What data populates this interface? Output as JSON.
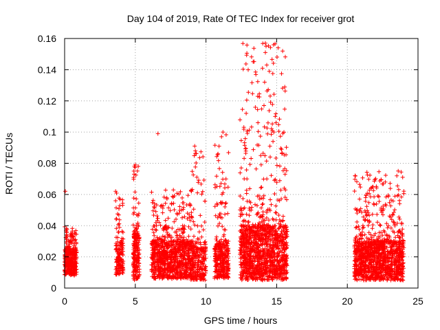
{
  "chart_data": {
    "type": "scatter",
    "title": "Day 104 of 2019, Rate Of TEC Index for receiver grot",
    "xlabel": "GPS time / hours",
    "ylabel": "ROTI / TECUs",
    "xlim": [
      0,
      25
    ],
    "ylim": [
      0,
      0.16
    ],
    "xticks": [
      0,
      5,
      10,
      15,
      20,
      25
    ],
    "yticks": [
      0,
      0.02,
      0.04,
      0.06,
      0.08,
      0.1,
      0.12,
      0.14,
      0.16
    ],
    "xtick_labels": [
      "0",
      "5",
      "10",
      "15",
      "20",
      "25"
    ],
    "ytick_labels": [
      "0",
      "0.02",
      "0.04",
      "0.06",
      "0.08",
      "0.1",
      "0.12",
      "0.14",
      "0.16"
    ],
    "grid": true,
    "marker": "+",
    "color": "#ff0000",
    "clusters": [
      {
        "x_range": [
          0.0,
          0.85
        ],
        "y_base": [
          0.008,
          0.025
        ],
        "n": 340,
        "y_max": 0.04
      },
      {
        "x_range": [
          3.6,
          4.15
        ],
        "y_base": [
          0.008,
          0.03
        ],
        "n": 150,
        "y_max": 0.066
      },
      {
        "x_range": [
          4.85,
          5.3
        ],
        "y_base": [
          0.005,
          0.035
        ],
        "n": 200,
        "y_max": 0.079
      },
      {
        "x_range": [
          6.15,
          9.0
        ],
        "y_base": [
          0.006,
          0.03
        ],
        "n": 900,
        "y_max": 0.063
      },
      {
        "x_range": [
          8.9,
          10.0
        ],
        "y_base": [
          0.005,
          0.028
        ],
        "n": 260,
        "y_max": 0.091
      },
      {
        "x_range": [
          10.6,
          11.6
        ],
        "y_base": [
          0.006,
          0.03
        ],
        "n": 320,
        "y_max": 0.099
      },
      {
        "x_range": [
          12.4,
          15.75
        ],
        "y_base": [
          0.005,
          0.04
        ],
        "n": 1300,
        "y_max": 0.157
      },
      {
        "x_range": [
          20.5,
          24.0
        ],
        "y_base": [
          0.005,
          0.03
        ],
        "n": 1200,
        "y_max": 0.075
      }
    ],
    "highlights": [
      {
        "x": 0.05,
        "y": 0.062
      },
      {
        "x": 6.6,
        "y": 0.099
      },
      {
        "x": 11.2,
        "y": 0.1
      },
      {
        "x": 14.2,
        "y": 0.157
      },
      {
        "x": 14.25,
        "y": 0.155
      },
      {
        "x": 14.2,
        "y": 0.151
      },
      {
        "x": 14.3,
        "y": 0.143
      },
      {
        "x": 14.15,
        "y": 0.132
      },
      {
        "x": 14.9,
        "y": 0.11
      },
      {
        "x": 14.95,
        "y": 0.106
      },
      {
        "x": 9.2,
        "y": 0.091
      },
      {
        "x": 9.25,
        "y": 0.088
      },
      {
        "x": 11.1,
        "y": 0.097
      },
      {
        "x": 14.8,
        "y": 0.1
      },
      {
        "x": 23.6,
        "y": 0.075
      },
      {
        "x": 23.5,
        "y": 0.072
      },
      {
        "x": 5.0,
        "y": 0.079
      },
      {
        "x": 5.15,
        "y": 0.075
      },
      {
        "x": 12.9,
        "y": 0.07
      },
      {
        "x": 15.6,
        "y": 0.073
      }
    ]
  }
}
